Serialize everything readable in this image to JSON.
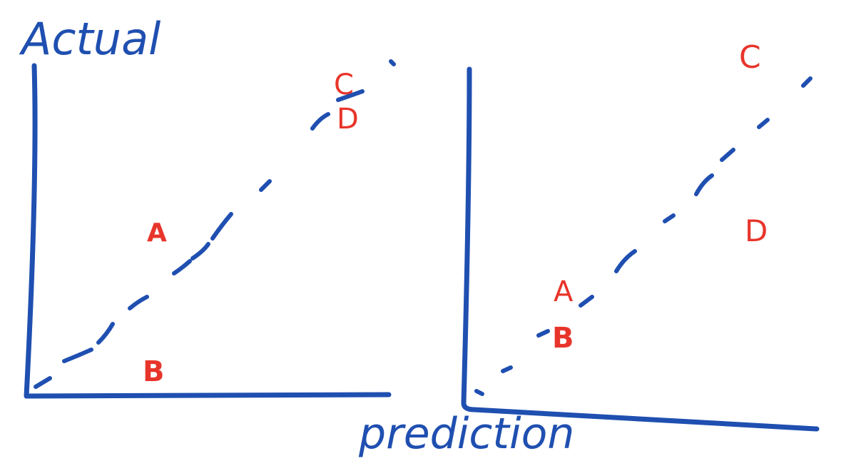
{
  "y_axis_label": "Actual",
  "x_axis_label": "prediction",
  "colors": {
    "axis_ink": "#1f4fb0",
    "point_ink": "#e8352b",
    "background": "#ffffff"
  },
  "panels": [
    {
      "id": "left",
      "points": {
        "a": "A",
        "b": "B",
        "c": "C",
        "d": "D"
      }
    },
    {
      "id": "right",
      "points": {
        "a": "A",
        "b": "B",
        "c": "C",
        "d": "D"
      }
    }
  ]
}
